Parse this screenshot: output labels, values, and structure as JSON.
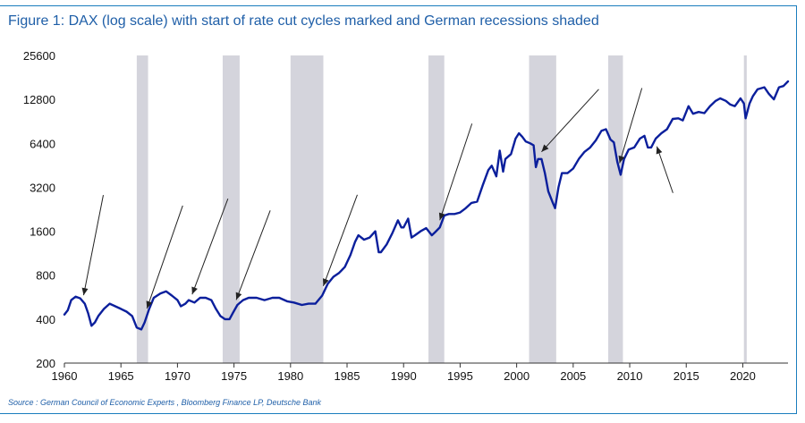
{
  "title": "Figure 1: DAX (log scale) with start of rate cut cycles marked and German recessions shaded",
  "source": "Source : German Council of Economic Experts , Bloomberg Finance LP, Deutsche Bank",
  "colors": {
    "series": "#0b1f9c",
    "recession": "#d4d4dc",
    "arrow": "#222222",
    "title": "#1f5fa8",
    "frame": "#1a7dbd"
  },
  "chart_data": {
    "type": "line",
    "title": "Figure 1: DAX (log scale) with start of rate cut cycles marked and German recessions shaded",
    "xlabel": "",
    "ylabel": "",
    "yscale": "log",
    "xlim": [
      1960,
      2024
    ],
    "ylim": [
      200,
      25600
    ],
    "x_ticks": [
      1960,
      1965,
      1970,
      1975,
      1980,
      1985,
      1990,
      1995,
      2000,
      2005,
      2010,
      2015,
      2020
    ],
    "y_ticks": [
      200,
      400,
      800,
      1600,
      3200,
      6400,
      12800,
      25600
    ],
    "grid": false,
    "legend": "none",
    "series": [
      {
        "x": [
          1960.0,
          1960.3,
          1960.6,
          1961.0,
          1961.4,
          1961.8,
          1962.1,
          1962.4,
          1962.7,
          1963.0,
          1963.5,
          1964.0,
          1964.5,
          1965.0,
          1965.5,
          1966.0,
          1966.4,
          1966.8,
          1967.1,
          1967.5,
          1967.9,
          1968.5,
          1969.0,
          1969.5,
          1970.0,
          1970.3,
          1970.7,
          1971.0,
          1971.5,
          1972.0,
          1972.5,
          1973.0,
          1973.4,
          1973.8,
          1974.2,
          1974.6,
          1974.9,
          1975.3,
          1975.8,
          1976.3,
          1977.0,
          1977.7,
          1978.4,
          1979.0,
          1979.7,
          1980.3,
          1981.0,
          1981.6,
          1982.2,
          1982.8,
          1983.3,
          1983.8,
          1984.3,
          1984.8,
          1985.3,
          1985.7,
          1986.0,
          1986.5,
          1987.0,
          1987.5,
          1987.8,
          1988.0,
          1988.5,
          1989.0,
          1989.5,
          1989.8,
          1990.0,
          1990.4,
          1990.7,
          1991.0,
          1991.5,
          1992.0,
          1992.5,
          1992.8,
          1993.2,
          1993.6,
          1994.0,
          1994.5,
          1995.0,
          1995.5,
          1996.0,
          1996.5,
          1997.0,
          1997.5,
          1997.8,
          1998.2,
          1998.5,
          1998.8,
          1999.0,
          1999.5,
          1999.9,
          2000.2,
          2000.5,
          2000.8,
          2001.2,
          2001.5,
          2001.7,
          2001.9,
          2002.2,
          2002.5,
          2002.8,
          2003.2,
          2003.4,
          2003.7,
          2004.0,
          2004.5,
          2005.0,
          2005.5,
          2006.0,
          2006.5,
          2007.0,
          2007.5,
          2007.9,
          2008.3,
          2008.6,
          2008.9,
          2009.2,
          2009.5,
          2009.9,
          2010.4,
          2010.9,
          2011.3,
          2011.6,
          2011.9,
          2012.3,
          2012.8,
          2013.3,
          2013.8,
          2014.3,
          2014.7,
          2015.2,
          2015.6,
          2016.1,
          2016.6,
          2017.1,
          2017.6,
          2018.0,
          2018.5,
          2018.9,
          2019.3,
          2019.8,
          2020.1,
          2020.25,
          2020.6,
          2020.9,
          2021.3,
          2021.9,
          2022.3,
          2022.75,
          2023.2,
          2023.6,
          2024.0
        ],
        "values": [
          430,
          460,
          540,
          570,
          555,
          510,
          440,
          360,
          380,
          420,
          470,
          510,
          490,
          470,
          450,
          420,
          350,
          340,
          380,
          470,
          560,
          600,
          620,
          580,
          540,
          490,
          510,
          540,
          520,
          560,
          560,
          540,
          470,
          420,
          400,
          400,
          440,
          500,
          540,
          560,
          560,
          540,
          560,
          560,
          530,
          520,
          500,
          510,
          510,
          580,
          700,
          780,
          830,
          910,
          1100,
          1350,
          1500,
          1400,
          1450,
          1600,
          1150,
          1150,
          1300,
          1550,
          1900,
          1700,
          1700,
          1950,
          1450,
          1500,
          1600,
          1680,
          1500,
          1580,
          1700,
          2050,
          2100,
          2100,
          2150,
          2300,
          2500,
          2550,
          3300,
          4200,
          4500,
          3800,
          5700,
          4100,
          5000,
          5400,
          6900,
          7500,
          7100,
          6600,
          6400,
          6200,
          4400,
          5000,
          5000,
          4000,
          3000,
          2500,
          2300,
          3200,
          4000,
          4000,
          4300,
          5000,
          5600,
          6000,
          6700,
          7800,
          8000,
          6800,
          6500,
          4800,
          3900,
          5000,
          5800,
          6000,
          6900,
          7200,
          6000,
          6000,
          6900,
          7500,
          8000,
          9400,
          9500,
          9200,
          11500,
          10200,
          10500,
          10300,
          11500,
          12500,
          13000,
          12500,
          11800,
          11500,
          13000,
          12000,
          9500,
          12000,
          13500,
          15000,
          15500,
          14000,
          12800,
          15500,
          15800,
          17000
        ]
      }
    ],
    "recession_shading": [
      [
        1966.4,
        1967.4
      ],
      [
        1974.0,
        1975.5
      ],
      [
        1980.0,
        1982.9
      ],
      [
        1992.2,
        1993.6
      ],
      [
        2001.1,
        2003.5
      ],
      [
        2008.1,
        2009.4
      ],
      [
        2020.1,
        2020.35
      ]
    ],
    "rate_cut_markers": [
      1961.7,
      1967.3,
      1971.3,
      1975.2,
      1982.9,
      1993.2,
      2002.2,
      2009.1,
      2012.4
    ]
  }
}
